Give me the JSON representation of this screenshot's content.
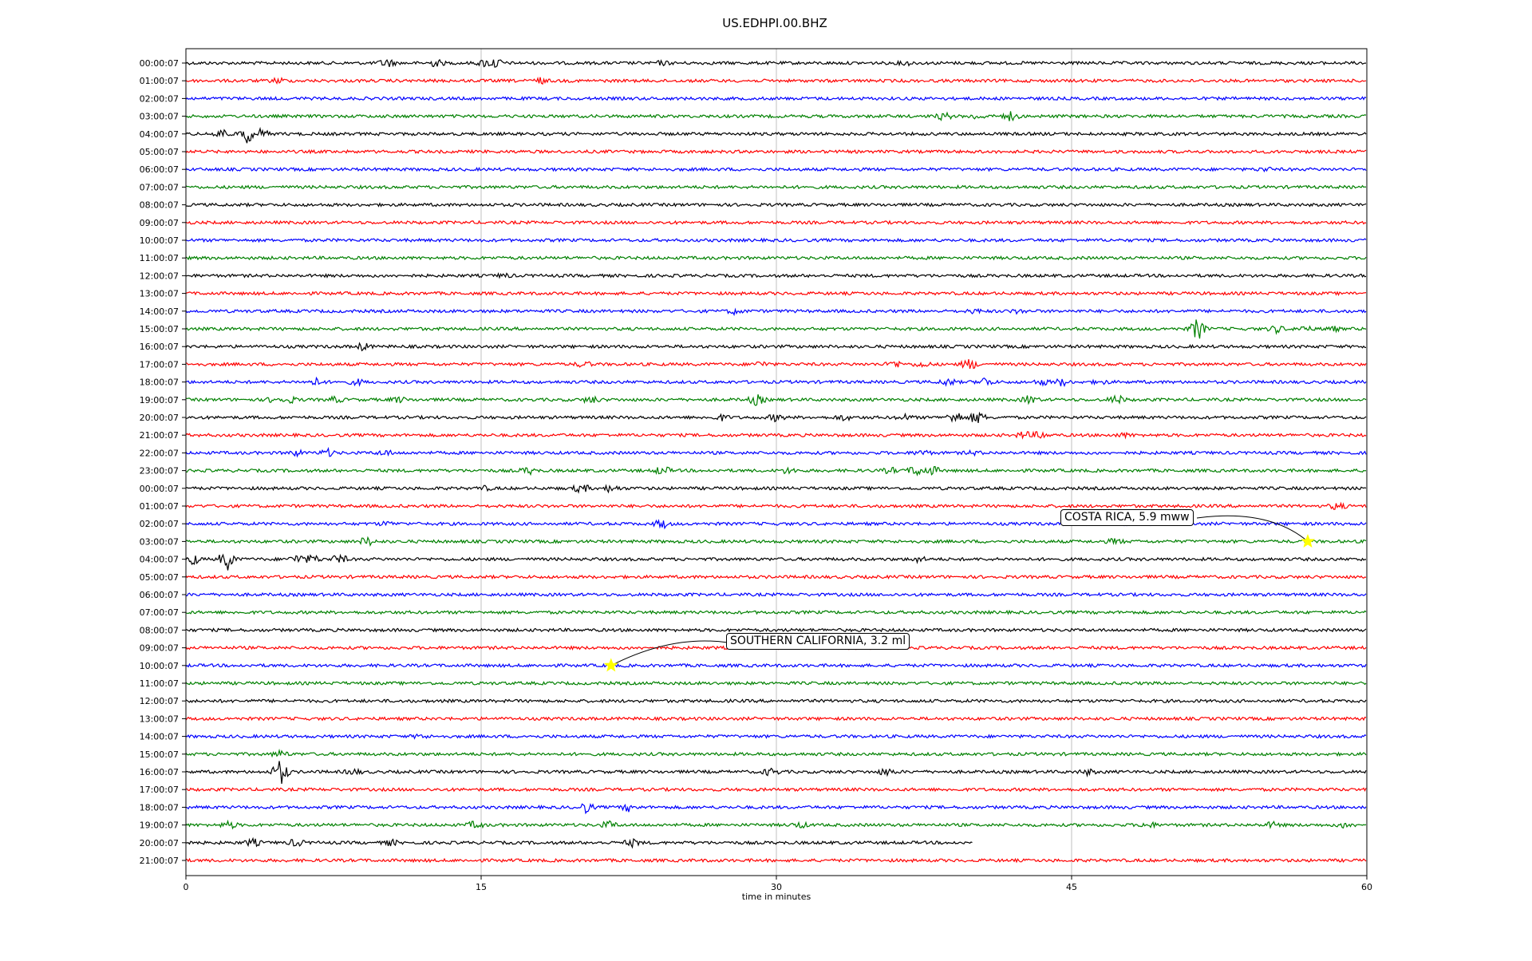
{
  "chart_data": {
    "type": "line",
    "title": "US.EDHPI.00.BHZ",
    "xlabel": "time in minutes",
    "xlim": [
      0,
      60
    ],
    "xticks": [
      0,
      15,
      30,
      45,
      60
    ],
    "xtick_labels": [
      "0",
      "15",
      "30",
      "45",
      "60"
    ],
    "grid": "vertical lines at 15, 30, 45",
    "row_labels": [
      "00:00:07",
      "01:00:07",
      "02:00:07",
      "03:00:07",
      "04:00:07",
      "05:00:07",
      "06:00:07",
      "07:00:07",
      "08:00:07",
      "09:00:07",
      "10:00:07",
      "11:00:07",
      "12:00:07",
      "13:00:07",
      "14:00:07",
      "15:00:07",
      "16:00:07",
      "17:00:07",
      "18:00:07",
      "19:00:07",
      "20:00:07",
      "21:00:07",
      "22:00:07",
      "23:00:07",
      "00:00:07",
      "01:00:07",
      "02:00:07",
      "03:00:07",
      "04:00:07",
      "05:00:07",
      "06:00:07",
      "07:00:07",
      "08:00:07",
      "09:00:07",
      "10:00:07",
      "11:00:07",
      "12:00:07",
      "13:00:07",
      "14:00:07",
      "15:00:07",
      "16:00:07",
      "17:00:07",
      "18:00:07",
      "19:00:07",
      "20:00:07",
      "21:00:07"
    ],
    "trace_colors": [
      "#000000",
      "#ff0000",
      "#0000ff",
      "#008000"
    ],
    "last_trace_end_minute": 40,
    "bursts": [
      [
        [
          10.2,
          5
        ],
        [
          12.7,
          4
        ],
        [
          15.2,
          4
        ],
        [
          15.7,
          6
        ],
        [
          24.2,
          2
        ],
        [
          36.6,
          2
        ]
      ],
      [
        [
          4.7,
          3
        ],
        [
          18.0,
          3
        ]
      ],
      [],
      [
        [
          38.5,
          4
        ],
        [
          40.2,
          3
        ],
        [
          41.9,
          5
        ]
      ],
      [
        [
          1.8,
          6
        ],
        [
          3.1,
          11
        ],
        [
          3.8,
          5
        ]
      ],
      [],
      [
        [
          54.8,
          2
        ]
      ],
      [],
      [],
      [],
      [],
      [],
      [
        [
          16.2,
          2
        ]
      ],
      [],
      [
        [
          27.9,
          3
        ],
        [
          40.1,
          2
        ],
        [
          42.3,
          2
        ]
      ],
      [
        [
          51.4,
          13
        ],
        [
          55.4,
          4
        ],
        [
          56.8,
          3
        ],
        [
          58.2,
          3
        ]
      ],
      [
        [
          9.0,
          4
        ]
      ],
      [
        [
          20.2,
          3
        ],
        [
          29.2,
          3
        ],
        [
          36.0,
          4
        ],
        [
          37.4,
          3
        ],
        [
          39.8,
          6
        ]
      ],
      [
        [
          6.6,
          4
        ],
        [
          8.7,
          3
        ],
        [
          38.7,
          4
        ],
        [
          40.6,
          5
        ],
        [
          43.5,
          3
        ],
        [
          44.5,
          4
        ],
        [
          46.5,
          2
        ]
      ],
      [
        [
          4.5,
          3
        ],
        [
          5.3,
          3
        ],
        [
          7.6,
          3
        ],
        [
          10.8,
          3
        ],
        [
          20.6,
          4
        ],
        [
          29.0,
          6
        ],
        [
          42.9,
          5
        ],
        [
          47.3,
          5
        ]
      ],
      [
        [
          27.2,
          3
        ],
        [
          30.0,
          4
        ],
        [
          33.4,
          3
        ],
        [
          36.5,
          3
        ],
        [
          39.1,
          7
        ],
        [
          40.2,
          7
        ]
      ],
      [
        [
          42.6,
          4
        ],
        [
          43.4,
          4
        ],
        [
          47.7,
          2
        ]
      ],
      [
        [
          5.6,
          3
        ],
        [
          7.2,
          4
        ],
        [
          10.1,
          3
        ],
        [
          37.4,
          3
        ],
        [
          40.0,
          2
        ]
      ],
      [
        [
          17.4,
          4
        ],
        [
          24.2,
          5
        ],
        [
          30.6,
          3
        ],
        [
          35.8,
          3
        ],
        [
          37.1,
          6
        ],
        [
          37.9,
          5
        ]
      ],
      [
        [
          15.2,
          2
        ],
        [
          20.1,
          5
        ],
        [
          21.6,
          4
        ]
      ],
      [
        [
          58.5,
          4
        ]
      ],
      [
        [
          10.2,
          2
        ],
        [
          24.2,
          5
        ]
      ],
      [
        [
          9.2,
          5
        ],
        [
          47.2,
          3
        ]
      ],
      [
        [
          0.3,
          7
        ],
        [
          2.1,
          13
        ],
        [
          5.7,
          5
        ],
        [
          6.4,
          5
        ],
        [
          7.8,
          5
        ],
        [
          37.2,
          3
        ]
      ],
      [],
      [],
      [],
      [],
      [],
      [],
      [],
      [],
      [],
      [
        [
          11.9,
          2
        ]
      ],
      [
        [
          4.8,
          4
        ]
      ],
      [
        [
          4.8,
          15
        ],
        [
          8.5,
          3
        ],
        [
          29.7,
          4
        ],
        [
          35.6,
          4
        ],
        [
          45.8,
          3
        ]
      ],
      [],
      [
        [
          20.3,
          6
        ],
        [
          22.5,
          4
        ]
      ],
      [
        [
          2.2,
          4
        ],
        [
          14.7,
          4
        ],
        [
          21.5,
          4
        ],
        [
          31.2,
          3
        ],
        [
          48.9,
          3
        ],
        [
          55.2,
          3
        ],
        [
          58.9,
          3
        ]
      ],
      [
        [
          3.4,
          4
        ],
        [
          5.6,
          4
        ],
        [
          10.4,
          3
        ],
        [
          22.7,
          4
        ]
      ],
      []
    ],
    "annotations": [
      {
        "text": "COSTA RICA, 5.9 mww",
        "row": 27,
        "minute": 57.0
      },
      {
        "text": "SOUTHERN CALIFORNIA, 3.2 ml",
        "row": 34,
        "minute": 21.6
      }
    ]
  }
}
